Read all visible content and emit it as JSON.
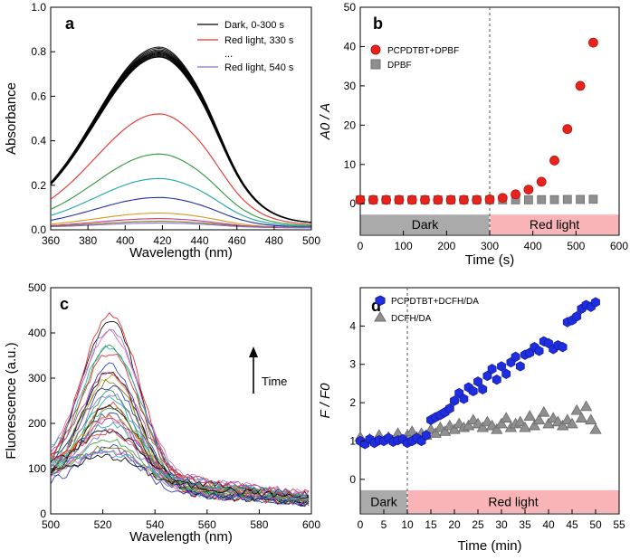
{
  "figure": {
    "panels": [
      "a",
      "b",
      "c",
      "d"
    ]
  },
  "chart_data": [
    {
      "id": "a",
      "type": "line",
      "panel_label": "a",
      "xlabel": "Wavelength (nm)",
      "ylabel": "Absorbance",
      "xlim": [
        360,
        500
      ],
      "ylim": [
        0,
        1.0
      ],
      "xticks": [
        360,
        380,
        400,
        420,
        440,
        460,
        480,
        500
      ],
      "yticks": [
        0.0,
        0.2,
        0.4,
        0.6,
        0.8,
        1.0
      ],
      "ytick_labels": [
        "0.0",
        "0.2",
        "0.4",
        "0.6",
        "0.8",
        "1.0"
      ],
      "legend": {
        "position": "top-right",
        "entries": [
          {
            "label": "Dark, 0-300 s",
            "color": "#000000"
          },
          {
            "label": "Red light, 330 s",
            "color": "#e8322b"
          },
          {
            "label": "...",
            "color": null
          },
          {
            "label": "Red light, 540 s",
            "color": "#8a6cd8"
          }
        ]
      },
      "series": [
        {
          "name": "Dark 0 s",
          "peak": 0.82,
          "color": "#000000"
        },
        {
          "name": "Dark 30 s",
          "peak": 0.814,
          "color": "#000000"
        },
        {
          "name": "Dark 60 s",
          "peak": 0.808,
          "color": "#000000"
        },
        {
          "name": "Dark 90 s",
          "peak": 0.803,
          "color": "#000000"
        },
        {
          "name": "Dark 120 s",
          "peak": 0.798,
          "color": "#000000"
        },
        {
          "name": "Dark 150 s",
          "peak": 0.794,
          "color": "#000000"
        },
        {
          "name": "Dark 180 s",
          "peak": 0.79,
          "color": "#000000"
        },
        {
          "name": "Dark 210 s",
          "peak": 0.786,
          "color": "#000000"
        },
        {
          "name": "Dark 240 s",
          "peak": 0.782,
          "color": "#000000"
        },
        {
          "name": "Dark 270 s",
          "peak": 0.778,
          "color": "#000000"
        },
        {
          "name": "Dark 300 s",
          "peak": 0.775,
          "color": "#000000"
        },
        {
          "name": "Red light 330 s",
          "peak": 0.52,
          "color": "#e8322b"
        },
        {
          "name": "Red light 360 s",
          "peak": 0.34,
          "color": "#2e9a3a"
        },
        {
          "name": "Red light 390 s",
          "peak": 0.23,
          "color": "#1aa6a8"
        },
        {
          "name": "Red light 420 s",
          "peak": 0.145,
          "color": "#1f2fa8"
        },
        {
          "name": "Red light 450 s",
          "peak": 0.075,
          "color": "#d99a1c"
        },
        {
          "name": "Red light 480 s",
          "peak": 0.05,
          "color": "#c2338a"
        },
        {
          "name": "Red light 510 s",
          "peak": 0.038,
          "color": "#7a7a10"
        },
        {
          "name": "Red light 540 s",
          "peak": 0.03,
          "color": "#8a6cd8"
        }
      ]
    },
    {
      "id": "b",
      "type": "scatter",
      "panel_label": "b",
      "xlabel": "Time (s)",
      "ylabel": "A0 / A",
      "xlim": [
        0,
        600
      ],
      "ylim": [
        -8,
        50
      ],
      "xticks": [
        0,
        100,
        200,
        300,
        400,
        500,
        600
      ],
      "yticks": [
        0,
        10,
        20,
        30,
        40,
        50
      ],
      "vline": 300,
      "regions": [
        {
          "label": "Dark",
          "x0": 0,
          "x1": 300,
          "color": "#aaaaaa"
        },
        {
          "label": "Red light",
          "x0": 300,
          "x1": 600,
          "color": "#f8b4b6"
        }
      ],
      "legend": {
        "position": "top-left"
      },
      "series": [
        {
          "name": "PCPDTBT+DPBF",
          "marker": "circle",
          "color": "#e8231c",
          "edge": "#b01510",
          "x": [
            0,
            30,
            60,
            90,
            120,
            150,
            180,
            210,
            240,
            270,
            300,
            330,
            360,
            390,
            420,
            450,
            480,
            510,
            540
          ],
          "y": [
            1,
            1,
            1,
            1,
            1,
            1,
            1,
            1,
            1,
            1,
            1.1,
            1.5,
            2.4,
            3.6,
            5.6,
            11,
            19,
            30,
            41
          ]
        },
        {
          "name": "DPBF",
          "marker": "square",
          "color": "#8f8f8f",
          "edge": "#6f6f6f",
          "x": [
            0,
            30,
            60,
            90,
            120,
            150,
            180,
            210,
            240,
            270,
            300,
            330,
            360,
            390,
            420,
            450,
            480,
            510,
            540
          ],
          "y": [
            1,
            1,
            1,
            1,
            1,
            1,
            1,
            1,
            1,
            1,
            1,
            1,
            1,
            1,
            1.05,
            1.05,
            1.1,
            1.1,
            1.15
          ]
        }
      ]
    },
    {
      "id": "c",
      "type": "line",
      "panel_label": "c",
      "xlabel": "Wavelength (nm)",
      "ylabel": "Fluorescence (a.u.)",
      "xlim": [
        500,
        600
      ],
      "ylim": [
        0,
        500
      ],
      "xticks": [
        500,
        520,
        540,
        560,
        580,
        600
      ],
      "yticks": [
        0,
        100,
        200,
        300,
        400,
        500
      ],
      "annotation": {
        "text": "Time",
        "arrow": "up"
      },
      "series": [
        {
          "peak": 410,
          "color": "#e8231c"
        },
        {
          "peak": 402,
          "color": "#000000"
        },
        {
          "peak": 380,
          "color": "#8a6cd8"
        },
        {
          "peak": 360,
          "color": "#d36fb0"
        },
        {
          "peak": 345,
          "color": "#2e9a3a"
        },
        {
          "peak": 332,
          "color": "#1aa6a8"
        },
        {
          "peak": 318,
          "color": "#e8231c"
        },
        {
          "peak": 305,
          "color": "#1f2fa8"
        },
        {
          "peak": 292,
          "color": "#000000"
        },
        {
          "peak": 282,
          "color": "#d99a1c"
        },
        {
          "peak": 272,
          "color": "#c2338a"
        },
        {
          "peak": 262,
          "color": "#7a7a10"
        },
        {
          "peak": 252,
          "color": "#1f2fa8"
        },
        {
          "peak": 244,
          "color": "#2e9a3a"
        },
        {
          "peak": 236,
          "color": "#8a6cd8"
        },
        {
          "peak": 228,
          "color": "#1aa6a8"
        },
        {
          "peak": 220,
          "color": "#e8231c"
        },
        {
          "peak": 212,
          "color": "#000000"
        },
        {
          "peak": 204,
          "color": "#2e9a3a"
        },
        {
          "peak": 196,
          "color": "#1f2fa8"
        },
        {
          "peak": 188,
          "color": "#d36fb0"
        },
        {
          "peak": 180,
          "color": "#d99a1c"
        },
        {
          "peak": 172,
          "color": "#c2338a"
        },
        {
          "peak": 164,
          "color": "#1aa6a8"
        },
        {
          "peak": 156,
          "color": "#8a6cd8"
        },
        {
          "peak": 148,
          "color": "#000000"
        },
        {
          "peak": 140,
          "color": "#e8231c"
        },
        {
          "peak": 132,
          "color": "#2e9a3a"
        },
        {
          "peak": 124,
          "color": "#1f2fa8"
        },
        {
          "peak": 116,
          "color": "#7a7a10"
        },
        {
          "peak": 108,
          "color": "#d36fb0"
        },
        {
          "peak": 100,
          "color": "#1aa6a8"
        },
        {
          "peak": 94,
          "color": "#000000"
        },
        {
          "peak": 90,
          "color": "#8a6cd8"
        }
      ]
    },
    {
      "id": "d",
      "type": "scatter",
      "panel_label": "d",
      "xlabel": "Time (min)",
      "ylabel": "F / F0",
      "xlim": [
        0,
        55
      ],
      "ylim": [
        -0.9,
        5
      ],
      "xticks": [
        0,
        5,
        10,
        15,
        20,
        25,
        30,
        35,
        40,
        45,
        50,
        55
      ],
      "yticks": [
        0,
        1,
        2,
        3,
        4
      ],
      "vline": 10,
      "regions": [
        {
          "label": "Dark",
          "x0": 0,
          "x1": 10,
          "color": "#aaaaaa"
        },
        {
          "label": "Red light",
          "x0": 10,
          "x1": 55,
          "color": "#f8b4b6"
        }
      ],
      "legend": {
        "position": "top-left"
      },
      "series": [
        {
          "name": "PCPDTBT+DCFH/DA",
          "marker": "hexagon",
          "color": "#1f2ee0",
          "edge": "#141c9a",
          "x": [
            0,
            1,
            2,
            3,
            4,
            5,
            6,
            7,
            8,
            9,
            10,
            11,
            12,
            13,
            14,
            15,
            16,
            17,
            18,
            19,
            20,
            21,
            22,
            23,
            24,
            25,
            26,
            27,
            28,
            29,
            30,
            31,
            32,
            33,
            34,
            35,
            36,
            37,
            38,
            39,
            40,
            41,
            42,
            43,
            44,
            45,
            46,
            47,
            48,
            49,
            50
          ],
          "y": [
            1.0,
            0.92,
            1.05,
            0.95,
            1.02,
            1.0,
            1.08,
            0.98,
            1.02,
            1.05,
            0.95,
            1.0,
            1.08,
            1.0,
            1.15,
            1.55,
            1.62,
            1.68,
            1.75,
            1.85,
            2.05,
            2.25,
            2.1,
            2.4,
            2.3,
            2.55,
            2.35,
            2.7,
            2.88,
            2.6,
            2.95,
            2.75,
            3.05,
            3.2,
            2.95,
            3.25,
            3.3,
            3.45,
            3.35,
            3.6,
            3.55,
            3.4,
            3.5,
            3.45,
            4.1,
            4.15,
            4.25,
            4.45,
            4.55,
            4.5,
            4.62
          ]
        },
        {
          "name": "DCFH/DA",
          "marker": "triangle",
          "color": "#8f8f8f",
          "edge": "#6a6a6a",
          "x": [
            0,
            2,
            4,
            6,
            8,
            10,
            11,
            12,
            13,
            14,
            15,
            16,
            17,
            18,
            19,
            20,
            21,
            22,
            23,
            24,
            25,
            26,
            27,
            28,
            29,
            30,
            31,
            32,
            33,
            34,
            35,
            36,
            37,
            38,
            39,
            40,
            41,
            42,
            43,
            44,
            45,
            46,
            47,
            48,
            49,
            50
          ],
          "y": [
            1.1,
            1.05,
            1.15,
            1.1,
            1.2,
            1.15,
            1.25,
            1.1,
            1.2,
            1.15,
            1.3,
            1.2,
            1.35,
            1.25,
            1.4,
            1.3,
            1.45,
            1.35,
            1.4,
            1.55,
            1.45,
            1.35,
            1.5,
            1.4,
            1.3,
            1.45,
            1.6,
            1.35,
            1.45,
            1.5,
            1.35,
            1.65,
            1.4,
            1.55,
            1.75,
            1.45,
            1.6,
            1.5,
            1.4,
            1.55,
            1.45,
            1.8,
            1.6,
            1.9,
            1.55,
            1.3
          ]
        }
      ]
    }
  ]
}
